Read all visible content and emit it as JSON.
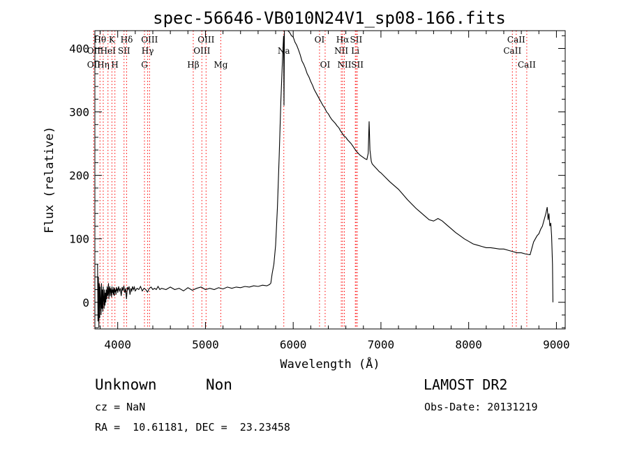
{
  "chart_data": {
    "type": "line",
    "title": "spec-56646-VB010N24V1_sp08-166.fits",
    "xlabel": "Wavelength (Å)",
    "ylabel": "Flux (relative)",
    "xlim": [
      3740,
      9100
    ],
    "ylim": [
      -42,
      428
    ],
    "xticks": [
      4000,
      5000,
      6000,
      7000,
      8000,
      9000
    ],
    "yticks": [
      0,
      100,
      200,
      300,
      400
    ],
    "grid": false,
    "line_color": "#000000",
    "marker_color": "#ff0000",
    "spectrum": [
      [
        3770,
        60
      ],
      [
        3775,
        -30
      ],
      [
        3780,
        40
      ],
      [
        3785,
        -40
      ],
      [
        3790,
        30
      ],
      [
        3795,
        -25
      ],
      [
        3800,
        25
      ],
      [
        3805,
        0
      ],
      [
        3810,
        -20
      ],
      [
        3815,
        30
      ],
      [
        3820,
        -10
      ],
      [
        3825,
        20
      ],
      [
        3830,
        -15
      ],
      [
        3835,
        25
      ],
      [
        3840,
        5
      ],
      [
        3845,
        -10
      ],
      [
        3850,
        20
      ],
      [
        3855,
        -5
      ],
      [
        3860,
        15
      ],
      [
        3865,
        0
      ],
      [
        3870,
        20
      ],
      [
        3875,
        5
      ],
      [
        3880,
        25
      ],
      [
        3885,
        10
      ],
      [
        3890,
        15
      ],
      [
        3895,
        30
      ],
      [
        3900,
        5
      ],
      [
        3905,
        20
      ],
      [
        3910,
        25
      ],
      [
        3915,
        10
      ],
      [
        3920,
        22
      ],
      [
        3925,
        18
      ],
      [
        3930,
        8
      ],
      [
        3935,
        25
      ],
      [
        3940,
        15
      ],
      [
        3945,
        20
      ],
      [
        3950,
        12
      ],
      [
        3955,
        24
      ],
      [
        3960,
        10
      ],
      [
        3965,
        22
      ],
      [
        3970,
        16
      ],
      [
        3975,
        20
      ],
      [
        3980,
        12
      ],
      [
        3985,
        24
      ],
      [
        3990,
        18
      ],
      [
        3995,
        22
      ],
      [
        4000,
        15
      ],
      [
        4010,
        25
      ],
      [
        4020,
        18
      ],
      [
        4030,
        22
      ],
      [
        4040,
        10
      ],
      [
        4050,
        24
      ],
      [
        4060,
        18
      ],
      [
        4070,
        26
      ],
      [
        4080,
        15
      ],
      [
        4090,
        22
      ],
      [
        4100,
        5
      ],
      [
        4110,
        24
      ],
      [
        4120,
        20
      ],
      [
        4130,
        25
      ],
      [
        4140,
        12
      ],
      [
        4150,
        22
      ],
      [
        4160,
        18
      ],
      [
        4170,
        25
      ],
      [
        4180,
        20
      ],
      [
        4190,
        24
      ],
      [
        4200,
        18
      ],
      [
        4220,
        22
      ],
      [
        4240,
        20
      ],
      [
        4260,
        25
      ],
      [
        4280,
        18
      ],
      [
        4300,
        22
      ],
      [
        4320,
        20
      ],
      [
        4340,
        16
      ],
      [
        4360,
        22
      ],
      [
        4380,
        24
      ],
      [
        4400,
        20
      ],
      [
        4420,
        22
      ],
      [
        4440,
        20
      ],
      [
        4460,
        25
      ],
      [
        4480,
        20
      ],
      [
        4500,
        22
      ],
      [
        4550,
        20
      ],
      [
        4600,
        24
      ],
      [
        4650,
        20
      ],
      [
        4700,
        22
      ],
      [
        4750,
        18
      ],
      [
        4800,
        23
      ],
      [
        4850,
        19
      ],
      [
        4900,
        22
      ],
      [
        4950,
        24
      ],
      [
        5000,
        20
      ],
      [
        5050,
        22
      ],
      [
        5100,
        20
      ],
      [
        5150,
        23
      ],
      [
        5200,
        21
      ],
      [
        5250,
        24
      ],
      [
        5300,
        22
      ],
      [
        5350,
        24
      ],
      [
        5400,
        23
      ],
      [
        5450,
        25
      ],
      [
        5500,
        24
      ],
      [
        5550,
        26
      ],
      [
        5600,
        25
      ],
      [
        5650,
        27
      ],
      [
        5700,
        26
      ],
      [
        5730,
        28
      ],
      [
        5745,
        30
      ],
      [
        5760,
        45
      ],
      [
        5780,
        60
      ],
      [
        5800,
        90
      ],
      [
        5820,
        150
      ],
      [
        5840,
        230
      ],
      [
        5860,
        320
      ],
      [
        5880,
        390
      ],
      [
        5890,
        420
      ],
      [
        5895,
        310
      ],
      [
        5900,
        428
      ],
      [
        5920,
        428
      ],
      [
        5940,
        428
      ],
      [
        5960,
        425
      ],
      [
        5980,
        420
      ],
      [
        6000,
        418
      ],
      [
        6020,
        410
      ],
      [
        6040,
        405
      ],
      [
        6060,
        398
      ],
      [
        6080,
        390
      ],
      [
        6100,
        380
      ],
      [
        6120,
        375
      ],
      [
        6140,
        368
      ],
      [
        6160,
        360
      ],
      [
        6180,
        355
      ],
      [
        6200,
        348
      ],
      [
        6220,
        342
      ],
      [
        6240,
        335
      ],
      [
        6260,
        330
      ],
      [
        6280,
        325
      ],
      [
        6300,
        320
      ],
      [
        6320,
        315
      ],
      [
        6340,
        310
      ],
      [
        6360,
        306
      ],
      [
        6380,
        300
      ],
      [
        6400,
        297
      ],
      [
        6420,
        292
      ],
      [
        6440,
        288
      ],
      [
        6460,
        285
      ],
      [
        6480,
        282
      ],
      [
        6500,
        278
      ],
      [
        6520,
        275
      ],
      [
        6540,
        270
      ],
      [
        6560,
        266
      ],
      [
        6580,
        262
      ],
      [
        6600,
        260
      ],
      [
        6620,
        256
      ],
      [
        6640,
        253
      ],
      [
        6660,
        250
      ],
      [
        6680,
        246
      ],
      [
        6700,
        242
      ],
      [
        6720,
        238
      ],
      [
        6740,
        235
      ],
      [
        6760,
        232
      ],
      [
        6780,
        230
      ],
      [
        6800,
        228
      ],
      [
        6820,
        226
      ],
      [
        6840,
        225
      ],
      [
        6855,
        235
      ],
      [
        6865,
        285
      ],
      [
        6875,
        240
      ],
      [
        6890,
        222
      ],
      [
        6900,
        218
      ],
      [
        6920,
        215
      ],
      [
        6940,
        212
      ],
      [
        6960,
        209
      ],
      [
        6980,
        206
      ],
      [
        7000,
        204
      ],
      [
        7050,
        197
      ],
      [
        7100,
        190
      ],
      [
        7150,
        184
      ],
      [
        7200,
        178
      ],
      [
        7250,
        170
      ],
      [
        7300,
        162
      ],
      [
        7350,
        155
      ],
      [
        7400,
        148
      ],
      [
        7450,
        142
      ],
      [
        7500,
        136
      ],
      [
        7550,
        130
      ],
      [
        7600,
        128
      ],
      [
        7650,
        132
      ],
      [
        7700,
        128
      ],
      [
        7750,
        122
      ],
      [
        7800,
        116
      ],
      [
        7850,
        110
      ],
      [
        7900,
        105
      ],
      [
        7950,
        100
      ],
      [
        8000,
        96
      ],
      [
        8050,
        92
      ],
      [
        8100,
        90
      ],
      [
        8150,
        88
      ],
      [
        8200,
        86
      ],
      [
        8250,
        86
      ],
      [
        8300,
        85
      ],
      [
        8350,
        84
      ],
      [
        8400,
        84
      ],
      [
        8450,
        82
      ],
      [
        8500,
        80
      ],
      [
        8550,
        78
      ],
      [
        8600,
        78
      ],
      [
        8650,
        76
      ],
      [
        8700,
        75
      ],
      [
        8720,
        85
      ],
      [
        8740,
        95
      ],
      [
        8760,
        100
      ],
      [
        8780,
        105
      ],
      [
        8800,
        108
      ],
      [
        8820,
        115
      ],
      [
        8840,
        120
      ],
      [
        8860,
        130
      ],
      [
        8880,
        140
      ],
      [
        8895,
        150
      ],
      [
        8905,
        130
      ],
      [
        8915,
        140
      ],
      [
        8925,
        120
      ],
      [
        8935,
        125
      ],
      [
        8945,
        105
      ],
      [
        8955,
        60
      ],
      [
        8960,
        0
      ]
    ],
    "lines": [
      {
        "label": "Hθ",
        "wl": 3798,
        "row": 1
      },
      {
        "label": "OII",
        "wl": 3727,
        "row": 2
      },
      {
        "label": "OII",
        "wl": 3727,
        "row": 3
      },
      {
        "label": "K",
        "wl": 3934,
        "row": 1
      },
      {
        "label": "HeI",
        "wl": 3889,
        "row": 2
      },
      {
        "label": "Hη",
        "wl": 3835,
        "row": 3
      },
      {
        "label": "Hδ",
        "wl": 4102,
        "row": 1
      },
      {
        "label": "SII",
        "wl": 4072,
        "row": 2
      },
      {
        "label": "H",
        "wl": 3968,
        "row": 3
      },
      {
        "label": "OIII",
        "wl": 4363,
        "row": 1
      },
      {
        "label": "Hγ",
        "wl": 4341,
        "row": 2
      },
      {
        "label": "G",
        "wl": 4305,
        "row": 3
      },
      {
        "label": "OIII",
        "wl": 5007,
        "row": 1
      },
      {
        "label": "OIII",
        "wl": 4959,
        "row": 2
      },
      {
        "label": "Hβ",
        "wl": 4861,
        "row": 3
      },
      {
        "label": "Mg",
        "wl": 5175,
        "row": 3
      },
      {
        "label": "Na",
        "wl": 5893,
        "row": 2
      },
      {
        "label": "OI",
        "wl": 6300,
        "row": 1
      },
      {
        "label": "OI",
        "wl": 6364,
        "row": 3
      },
      {
        "label": "Hα",
        "wl": 6563,
        "row": 1
      },
      {
        "label": "NII",
        "wl": 6548,
        "row": 2
      },
      {
        "label": "NII",
        "wl": 6583,
        "row": 3
      },
      {
        "label": "SII",
        "wl": 6717,
        "row": 1
      },
      {
        "label": "Li",
        "wl": 6708,
        "row": 2
      },
      {
        "label": "SII",
        "wl": 6731,
        "row": 3
      },
      {
        "label": "CaII",
        "wl": 8542,
        "row": 1
      },
      {
        "label": "CaII",
        "wl": 8498,
        "row": 2
      },
      {
        "label": "CaII",
        "wl": 8662,
        "row": 3
      }
    ]
  },
  "footer": {
    "class_label": "Unknown",
    "subclass_label": "Non",
    "survey": "LAMOST DR2",
    "cz": "cz = NaN",
    "obs_date": "Obs-Date: 20131219",
    "coords": "RA =  10.61181, DEC =  23.23458"
  }
}
